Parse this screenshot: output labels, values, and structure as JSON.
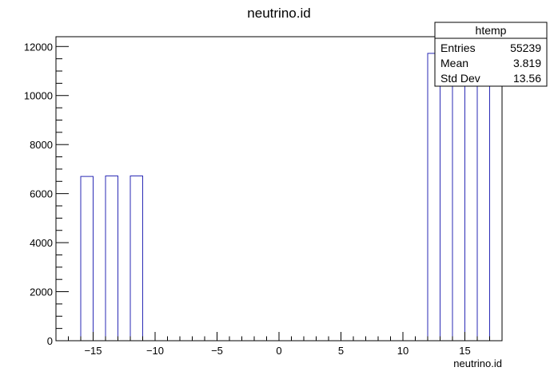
{
  "chart_data": {
    "type": "bar",
    "title": "neutrino.id",
    "xlabel": "neutrino.id",
    "ylabel": "",
    "xlim": [
      -18,
      18
    ],
    "ylim": [
      0,
      12400
    ],
    "xticks": [
      "−15",
      "−10",
      "−5",
      "0",
      "5",
      "10",
      "15"
    ],
    "yticks": [
      "0",
      "2000",
      "4000",
      "6000",
      "8000",
      "10000",
      "12000"
    ],
    "bin_width": 1,
    "bins": [
      {
        "x0": -16,
        "value": 6700
      },
      {
        "x0": -14,
        "value": 6720
      },
      {
        "x0": -12,
        "value": 6720
      },
      {
        "x0": 12,
        "value": 11720
      },
      {
        "x0": 13,
        "value": 11720
      },
      {
        "x0": 14,
        "value": 11720
      },
      {
        "x0": 15,
        "value": 11720
      },
      {
        "x0": 16,
        "value": 11720
      }
    ],
    "line_color": "#2a2ab5",
    "stats": {
      "name": "htemp",
      "rows": [
        {
          "label": "Entries",
          "value": "55239"
        },
        {
          "label": "Mean",
          "value": "3.819"
        },
        {
          "label": "Std Dev",
          "value": "13.56"
        }
      ]
    }
  }
}
